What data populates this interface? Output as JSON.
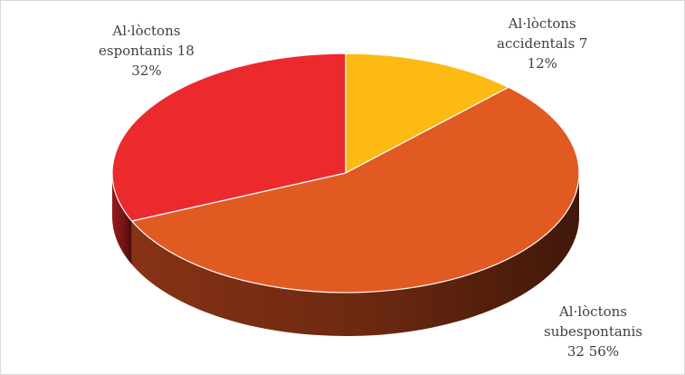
{
  "chart_data": {
    "type": "pie",
    "style": "3d",
    "title": "",
    "legend": "none",
    "slices": [
      {
        "category": "Al·lòctons accidentals",
        "value": 7,
        "percent": 12,
        "color": "#FDBA12",
        "side_color": "#B8860B",
        "label_lines": [
          "Al·lòctons",
          "accidentals 7",
          "12%"
        ]
      },
      {
        "category": "Al·lòctons subespontanis",
        "value": 32,
        "percent": 56,
        "color": "#E15A22",
        "side_color": "#8E3516",
        "label_lines": [
          "Al·lòctons",
          "subespontanis",
          "32 56%"
        ]
      },
      {
        "category": "Al·lòctons espontanis",
        "value": 18,
        "percent": 32,
        "color": "#EC2A2E",
        "side_color": "#9E1B1E",
        "label_lines": [
          "Al·lòctons",
          "espontanis 18",
          "32%"
        ]
      }
    ]
  }
}
